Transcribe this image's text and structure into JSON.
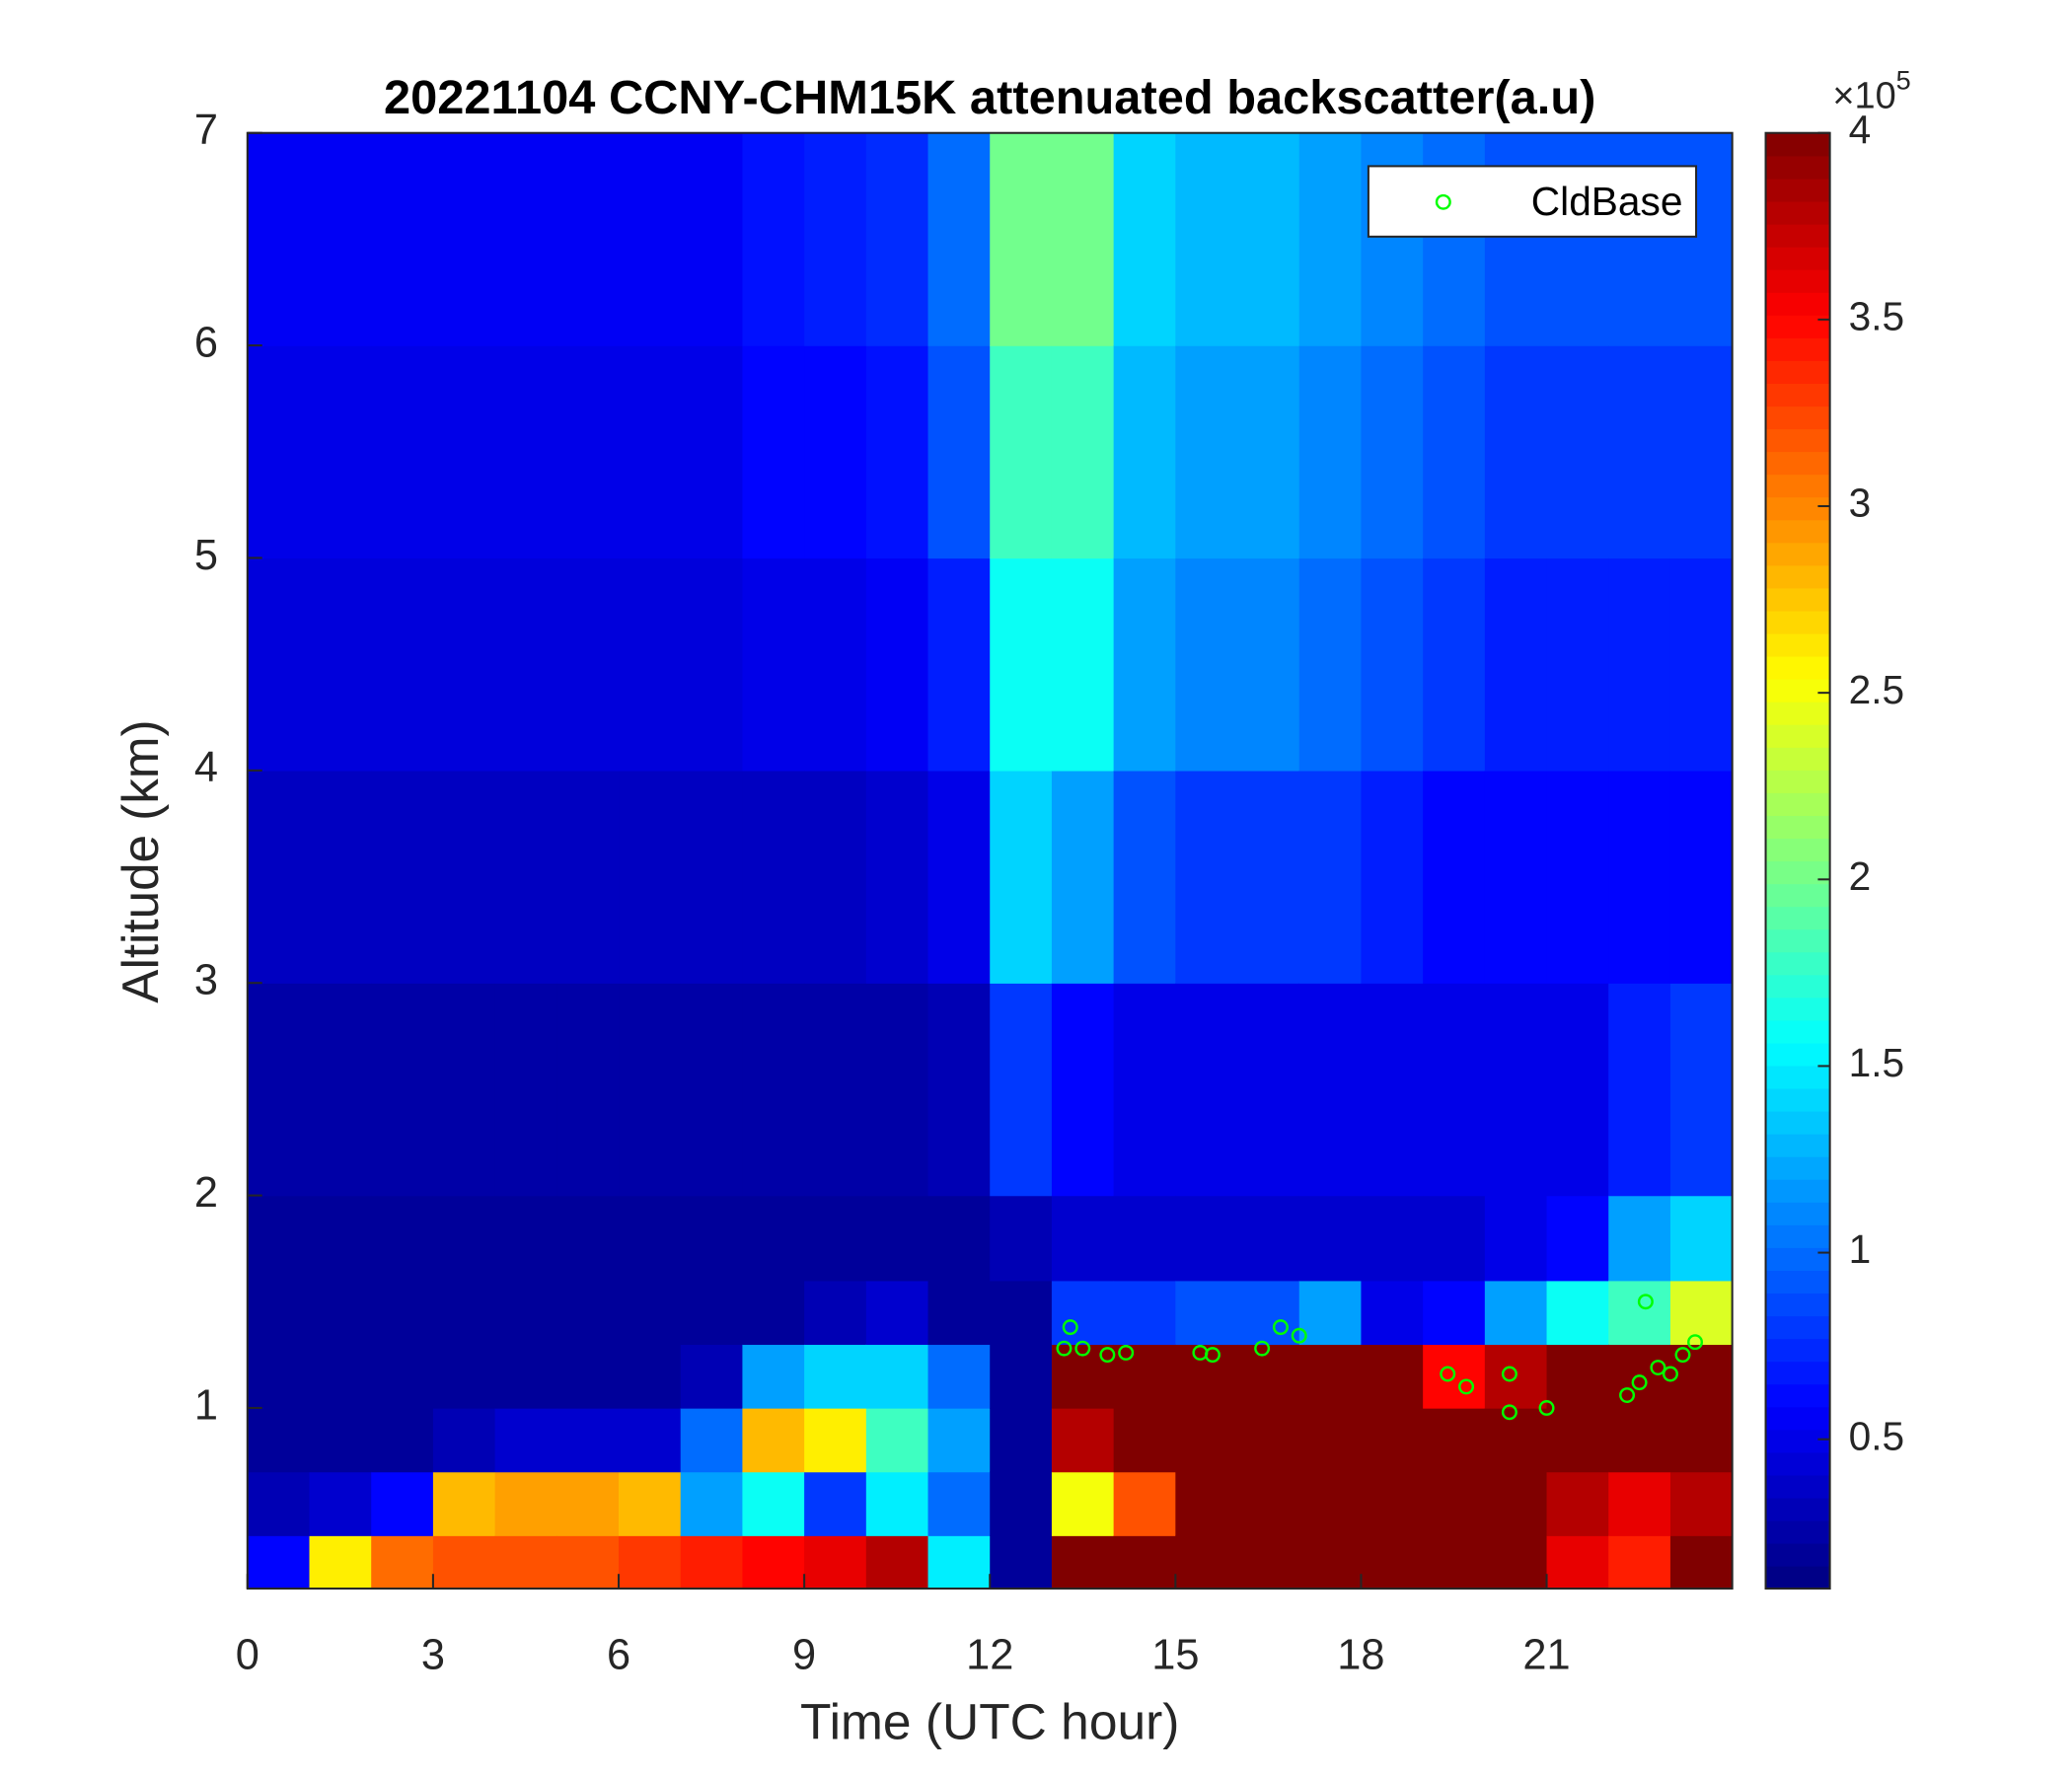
{
  "chart_data": {
    "type": "heatmap",
    "title": "20221104 CCNY-CHM15K attenuated backscatter(a.u)",
    "x_label": "Time (UTC hour)",
    "y_label": "Altitude (km)",
    "xlim": [
      0,
      24
    ],
    "xticks": [
      0,
      3,
      6,
      9,
      12,
      15,
      18,
      21
    ],
    "ylim": [
      0.15,
      7
    ],
    "yticks": [
      1,
      2,
      3,
      4,
      5,
      6,
      7
    ],
    "x_edges": [
      0,
      1,
      2,
      3,
      4,
      5,
      6,
      7,
      8,
      9,
      10,
      11,
      12,
      13,
      14,
      15,
      16,
      17,
      18,
      19,
      20,
      21,
      22,
      23,
      24
    ],
    "y_edges": [
      0.15,
      0.4,
      0.7,
      1.0,
      1.3,
      1.6,
      2,
      3,
      4,
      5,
      6,
      7
    ],
    "z": [
      [
        0.6,
        0.3,
        0.2,
        0.2,
        0.2,
        0.2,
        0.25,
        0.35,
        0.45,
        0.5,
        0.55
      ],
      [
        2.6,
        0.4,
        0.2,
        0.2,
        0.2,
        0.2,
        0.25,
        0.35,
        0.45,
        0.5,
        0.55
      ],
      [
        3.1,
        0.6,
        0.2,
        0.2,
        0.2,
        0.2,
        0.25,
        0.35,
        0.45,
        0.5,
        0.55
      ],
      [
        3.2,
        2.8,
        0.3,
        0.2,
        0.2,
        0.2,
        0.25,
        0.35,
        0.45,
        0.5,
        0.55
      ],
      [
        3.2,
        2.9,
        0.4,
        0.2,
        0.2,
        0.2,
        0.25,
        0.35,
        0.45,
        0.5,
        0.55
      ],
      [
        3.2,
        2.9,
        0.4,
        0.2,
        0.2,
        0.2,
        0.25,
        0.35,
        0.45,
        0.5,
        0.55
      ],
      [
        3.3,
        2.8,
        0.4,
        0.2,
        0.2,
        0.2,
        0.25,
        0.35,
        0.45,
        0.5,
        0.55
      ],
      [
        3.4,
        1.2,
        1.0,
        0.3,
        0.2,
        0.2,
        0.25,
        0.35,
        0.45,
        0.5,
        0.55
      ],
      [
        3.5,
        1.6,
        2.8,
        1.2,
        0.2,
        0.2,
        0.25,
        0.35,
        0.5,
        0.6,
        0.65
      ],
      [
        3.6,
        0.8,
        2.6,
        1.4,
        0.3,
        0.2,
        0.25,
        0.35,
        0.5,
        0.6,
        0.7
      ],
      [
        3.8,
        1.5,
        1.8,
        1.4,
        0.4,
        0.2,
        0.25,
        0.4,
        0.55,
        0.65,
        0.75
      ],
      [
        1.5,
        1.0,
        1.2,
        1.0,
        0.2,
        0.2,
        0.3,
        0.5,
        0.7,
        0.9,
        1.0
      ],
      [
        0.2,
        0.2,
        0.2,
        0.2,
        0.2,
        0.3,
        0.8,
        1.4,
        1.6,
        1.8,
        2.0
      ],
      [
        4,
        2.5,
        3.8,
        4,
        0.8,
        0.4,
        0.6,
        1.2,
        1.6,
        1.8,
        2.0
      ],
      [
        4,
        3.2,
        4,
        4,
        0.8,
        0.4,
        0.5,
        0.9,
        1.2,
        1.3,
        1.4
      ],
      [
        4,
        4,
        4,
        4,
        0.9,
        0.4,
        0.5,
        0.8,
        1.1,
        1.2,
        1.3
      ],
      [
        4,
        4,
        4,
        4,
        0.9,
        0.4,
        0.5,
        0.8,
        1.1,
        1.2,
        1.3
      ],
      [
        4,
        4,
        4,
        4,
        1.2,
        0.4,
        0.5,
        0.8,
        1.0,
        1.1,
        1.2
      ],
      [
        4,
        4,
        4,
        4,
        0.5,
        0.4,
        0.5,
        0.7,
        0.9,
        1.0,
        1.1
      ],
      [
        4,
        4,
        4,
        3.5,
        0.6,
        0.4,
        0.5,
        0.6,
        0.8,
        0.9,
        1.0
      ],
      [
        4,
        4,
        4,
        3.8,
        1.2,
        0.5,
        0.5,
        0.6,
        0.7,
        0.8,
        0.9
      ],
      [
        3.6,
        3.8,
        4,
        4,
        1.6,
        0.6,
        0.5,
        0.6,
        0.7,
        0.8,
        0.9
      ],
      [
        3.4,
        3.6,
        4,
        4,
        1.8,
        1.2,
        0.7,
        0.6,
        0.7,
        0.8,
        0.9
      ],
      [
        4,
        3.8,
        4,
        4,
        2.4,
        1.4,
        0.8,
        0.6,
        0.7,
        0.8,
        0.9
      ]
    ],
    "clim": [
      0.1,
      4
    ],
    "cticks": [
      0.5,
      1,
      1.5,
      2,
      2.5,
      3,
      3.5,
      4
    ],
    "colorbar_multiplier": "×10",
    "colorbar_exponent": "5",
    "colormap": "jet",
    "series": [
      {
        "name": "CldBase",
        "color": "#00ff00",
        "x": [
          13.2,
          13.3,
          13.5,
          13.9,
          14.2,
          15.4,
          15.6,
          16.4,
          16.7,
          17.0,
          19.4,
          19.7,
          20.4,
          20.4,
          21.0,
          22.3,
          22.5,
          22.6,
          22.8,
          23.0,
          23.2,
          23.4
        ],
        "y": [
          1.28,
          1.38,
          1.28,
          1.25,
          1.26,
          1.26,
          1.25,
          1.28,
          1.38,
          1.34,
          1.16,
          1.1,
          1.16,
          0.98,
          1.0,
          1.06,
          1.12,
          1.5,
          1.19,
          1.16,
          1.25,
          1.31
        ]
      }
    ],
    "legend_position": "upper right"
  }
}
